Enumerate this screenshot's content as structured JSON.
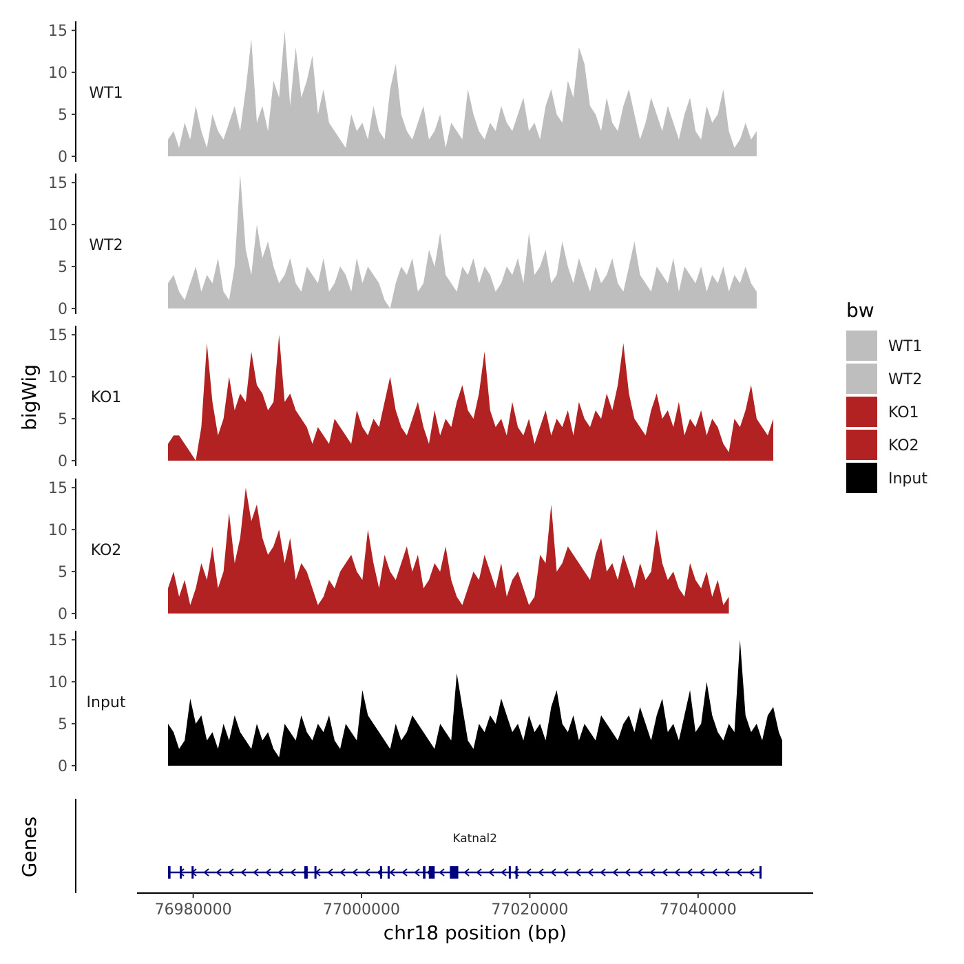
{
  "chart_data": {
    "type": "area",
    "y_axis_title": "bigWig",
    "x_axis_title": "chr18 position (bp)",
    "x_range": [
      76977000,
      77050000
    ],
    "x_ticks": [
      76980000,
      77000000,
      77020000,
      77040000
    ],
    "x_tick_labels": [
      "76980000",
      "77000000",
      "77020000",
      "77040000"
    ],
    "y_range": [
      0,
      16
    ],
    "y_ticks": [
      0,
      5,
      10,
      15
    ],
    "y_tick_labels": [
      "0",
      "5",
      "10",
      "15"
    ],
    "tracks": [
      {
        "name": "WT1",
        "color": "#bebebe",
        "x_step": 1000,
        "values": [
          2,
          3,
          1,
          4,
          2,
          6,
          3,
          1,
          5,
          3,
          2,
          4,
          6,
          3,
          8,
          14,
          4,
          6,
          3,
          9,
          7,
          15,
          6,
          13,
          7,
          9,
          12,
          5,
          8,
          4,
          3,
          2,
          1,
          5,
          3,
          4,
          2,
          6,
          3,
          2,
          8,
          11,
          5,
          3,
          2,
          4,
          6,
          2,
          3,
          5,
          1,
          4,
          3,
          2,
          8,
          5,
          3,
          2,
          4,
          3,
          6,
          4,
          3,
          5,
          7,
          3,
          4,
          2,
          6,
          8,
          5,
          4,
          9,
          7,
          13,
          11,
          6,
          5,
          3,
          7,
          4,
          3,
          6,
          8,
          5,
          2,
          4,
          7,
          5,
          3,
          6,
          4,
          2,
          5,
          7,
          3,
          2,
          6,
          4,
          5,
          8,
          3,
          1,
          2,
          4,
          2,
          3
        ]
      },
      {
        "name": "WT2",
        "color": "#bebebe",
        "x_step": 1000,
        "values": [
          3,
          4,
          2,
          1,
          3,
          5,
          2,
          4,
          3,
          6,
          2,
          1,
          5,
          16,
          7,
          4,
          10,
          6,
          8,
          5,
          3,
          4,
          6,
          3,
          2,
          5,
          4,
          3,
          6,
          2,
          3,
          5,
          4,
          2,
          6,
          3,
          5,
          4,
          3,
          1,
          0,
          3,
          5,
          4,
          6,
          2,
          3,
          7,
          5,
          9,
          4,
          3,
          2,
          5,
          4,
          6,
          3,
          5,
          4,
          2,
          3,
          5,
          4,
          6,
          3,
          9,
          4,
          5,
          7,
          3,
          4,
          8,
          5,
          3,
          6,
          4,
          2,
          5,
          3,
          4,
          6,
          3,
          2,
          5,
          8,
          4,
          3,
          2,
          5,
          4,
          3,
          6,
          2,
          5,
          4,
          3,
          5,
          2,
          4,
          3,
          5,
          2,
          4,
          3,
          5,
          3,
          2
        ]
      },
      {
        "name": "KO1",
        "color": "#b22222",
        "x_step": 1000,
        "values": [
          2,
          3,
          3,
          2,
          1,
          0,
          4,
          14,
          7,
          3,
          5,
          10,
          6,
          8,
          7,
          13,
          9,
          8,
          6,
          7,
          15,
          7,
          8,
          6,
          5,
          4,
          2,
          4,
          3,
          2,
          5,
          4,
          3,
          2,
          6,
          4,
          3,
          5,
          4,
          7,
          10,
          6,
          4,
          3,
          5,
          7,
          4,
          2,
          6,
          3,
          5,
          4,
          7,
          9,
          6,
          5,
          8,
          13,
          6,
          4,
          5,
          3,
          7,
          4,
          3,
          5,
          2,
          4,
          6,
          3,
          5,
          4,
          6,
          3,
          7,
          5,
          4,
          6,
          5,
          8,
          6,
          9,
          14,
          8,
          5,
          4,
          3,
          6,
          8,
          5,
          6,
          4,
          7,
          3,
          5,
          4,
          6,
          3,
          5,
          4,
          2,
          1,
          5,
          4,
          6,
          9,
          5,
          4,
          3,
          5
        ]
      },
      {
        "name": "KO2",
        "color": "#b22222",
        "x_step": 1000,
        "values": [
          3,
          5,
          2,
          4,
          1,
          3,
          6,
          4,
          8,
          3,
          5,
          12,
          6,
          9,
          15,
          11,
          13,
          9,
          7,
          8,
          10,
          6,
          9,
          4,
          6,
          5,
          3,
          1,
          2,
          4,
          3,
          5,
          6,
          7,
          5,
          4,
          10,
          6,
          3,
          7,
          5,
          4,
          6,
          8,
          5,
          7,
          3,
          4,
          6,
          5,
          8,
          4,
          2,
          1,
          3,
          5,
          4,
          7,
          5,
          3,
          6,
          2,
          4,
          5,
          3,
          1,
          2,
          7,
          6,
          13,
          5,
          6,
          8,
          7,
          6,
          5,
          4,
          7,
          9,
          5,
          6,
          4,
          7,
          5,
          3,
          6,
          4,
          5,
          10,
          6,
          4,
          5,
          3,
          2,
          6,
          4,
          3,
          5,
          2,
          4,
          1,
          2
        ]
      },
      {
        "name": "Input",
        "color": "#000000",
        "x_step": 1000,
        "values": [
          5,
          4,
          2,
          3,
          8,
          5,
          6,
          3,
          4,
          2,
          5,
          3,
          6,
          4,
          3,
          2,
          5,
          3,
          4,
          2,
          1,
          5,
          4,
          3,
          6,
          4,
          3,
          5,
          4,
          6,
          3,
          2,
          5,
          4,
          3,
          9,
          6,
          5,
          4,
          3,
          2,
          5,
          3,
          4,
          6,
          5,
          4,
          3,
          2,
          5,
          4,
          3,
          11,
          7,
          3,
          2,
          5,
          4,
          6,
          5,
          8,
          6,
          4,
          5,
          3,
          6,
          4,
          5,
          3,
          7,
          9,
          5,
          4,
          6,
          3,
          5,
          4,
          3,
          6,
          5,
          4,
          3,
          5,
          6,
          4,
          7,
          5,
          3,
          6,
          8,
          4,
          5,
          3,
          6,
          9,
          4,
          5,
          10,
          6,
          4,
          3,
          5,
          4,
          15,
          6,
          4,
          5,
          3,
          6,
          7,
          4,
          3,
          5
        ]
      }
    ],
    "legend": {
      "title": "bw",
      "position": "right",
      "entries": [
        {
          "label": "WT1",
          "color": "#bebebe"
        },
        {
          "label": "WT2",
          "color": "#bebebe"
        },
        {
          "label": "KO1",
          "color": "#b22222"
        },
        {
          "label": "KO2",
          "color": "#b22222"
        },
        {
          "label": "Input",
          "color": "#000000"
        }
      ]
    },
    "genes_panel": {
      "axis_title": "Genes",
      "gene": {
        "name": "Katnal2",
        "color": "#000080",
        "strand": "-",
        "start": 76977000,
        "end": 77047500,
        "exons": [
          [
            76977000,
            76977300
          ],
          [
            76978400,
            76978600
          ],
          [
            76979800,
            76980000
          ],
          [
            76993200,
            76993600
          ],
          [
            76994400,
            76994600
          ],
          [
            77002200,
            77002400
          ],
          [
            77003100,
            77003300
          ],
          [
            77007300,
            77007600
          ],
          [
            77008000,
            77008700
          ],
          [
            77010500,
            77011500
          ],
          [
            77017500,
            77017700
          ],
          [
            77018300,
            77018500
          ],
          [
            77047300,
            77047500
          ]
        ]
      }
    }
  }
}
